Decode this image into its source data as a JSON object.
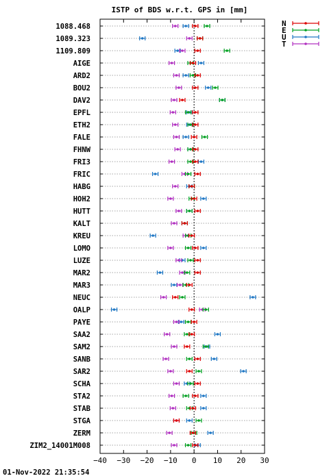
{
  "chart_data": {
    "type": "scatter",
    "title": "ISTP of BDS w.r.t. GPS in [mm]",
    "xlim": [
      -40,
      30
    ],
    "xticks": [
      "−40",
      "−30",
      "−20",
      "−10",
      "0",
      "10",
      "20",
      "30"
    ],
    "xtick_values": [
      -40,
      -30,
      -20,
      -10,
      0,
      10,
      20,
      30
    ],
    "grid": true,
    "legend_position": "top-right",
    "series": [
      {
        "name": "N",
        "color": "#dd0000"
      },
      {
        "name": "E",
        "color": "#00a020"
      },
      {
        "name": "U",
        "color": "#1f77c4"
      },
      {
        "name": "T",
        "color": "#b030c0"
      }
    ],
    "stations": [
      {
        "name": "1088.468",
        "N": 0.5,
        "E": 5.5,
        "U": -3.5,
        "T": -8
      },
      {
        "name": "1089.323",
        "N": 2.5,
        "E": 2.5,
        "U": -22,
        "T": -2
      },
      {
        "name": "1109.809",
        "N": 1.5,
        "E": 14,
        "U": -7,
        "T": -5
      },
      {
        "name": "AIGE",
        "N": -0.5,
        "E": -1.5,
        "U": 3,
        "T": -9.5
      },
      {
        "name": "ARD2",
        "N": 1.5,
        "E": -0.5,
        "U": -3.5,
        "T": -7.5
      },
      {
        "name": "BOU2",
        "N": 0.5,
        "E": 9,
        "U": 6,
        "T": -6.5
      },
      {
        "name": "DAV2",
        "N": -5,
        "E": 12,
        "U": 12,
        "T": -8.5
      },
      {
        "name": "EPFL",
        "N": 0.5,
        "E": -2.5,
        "U": -2,
        "T": -9
      },
      {
        "name": "ETH2",
        "N": 0.5,
        "E": -1.5,
        "U": -2,
        "T": -8
      },
      {
        "name": "FALE",
        "N": 0,
        "E": 4.5,
        "U": -3.5,
        "T": -7.5
      },
      {
        "name": "FHNW",
        "N": 0.5,
        "E": -1.5,
        "U": -1.5,
        "T": -7
      },
      {
        "name": "FRI3",
        "N": 0.5,
        "E": -1.5,
        "U": 3,
        "T": -9.5
      },
      {
        "name": "FRIC",
        "N": 1.5,
        "E": -2.5,
        "U": -16.5,
        "T": -4
      },
      {
        "name": "HABG",
        "N": -1,
        "E": -1,
        "U": -2,
        "T": -8
      },
      {
        "name": "HOH2",
        "N": 0,
        "E": -1,
        "U": 4,
        "T": -10
      },
      {
        "name": "HUTT",
        "N": 1.5,
        "E": -2,
        "U": -2,
        "T": -6.5
      },
      {
        "name": "KALT",
        "N": -4,
        "E": -4,
        "U": -4,
        "T": -8.5
      },
      {
        "name": "KREU",
        "N": -1,
        "E": -2.5,
        "U": -17.5,
        "T": -3.5
      },
      {
        "name": "LOMO",
        "N": 0.5,
        "E": -2.5,
        "U": 4,
        "T": -10
      },
      {
        "name": "LUZE",
        "N": 1.5,
        "E": -1.5,
        "U": -5,
        "T": -6.5
      },
      {
        "name": "MAR2",
        "N": 1.5,
        "E": -3,
        "U": -14.5,
        "T": -5
      },
      {
        "name": "MAR3",
        "N": -2,
        "E": -3.5,
        "U": -8.5,
        "T": -6
      },
      {
        "name": "NEUC",
        "N": -8,
        "E": -5,
        "U": 25,
        "T": -13
      },
      {
        "name": "OALP",
        "N": -1,
        "E": 5,
        "U": -34,
        "T": 3.5
      },
      {
        "name": "PAYE",
        "N": 0,
        "E": -2.5,
        "U": -5.5,
        "T": -7.5
      },
      {
        "name": "SAA2",
        "N": -1,
        "E": -3,
        "U": 10,
        "T": -11.5
      },
      {
        "name": "SAM2",
        "N": -3,
        "E": 5,
        "U": 5.5,
        "T": -8.5
      },
      {
        "name": "SANB",
        "N": 1.5,
        "E": -2,
        "U": 8.5,
        "T": -12
      },
      {
        "name": "SAR2",
        "N": -2,
        "E": 2,
        "U": 21,
        "T": -10
      },
      {
        "name": "SCHA",
        "N": 1.5,
        "E": -1.5,
        "U": -3,
        "T": -7.5
      },
      {
        "name": "STA2",
        "N": 0.5,
        "E": -3.5,
        "U": 4,
        "T": -9.5
      },
      {
        "name": "STAB",
        "N": -0.5,
        "E": -2,
        "U": 4,
        "T": -9
      },
      {
        "name": "STGA",
        "N": -7.5,
        "E": 2,
        "U": -2,
        "T": -7.5
      },
      {
        "name": "ZERM",
        "N": -0.5,
        "E": 0,
        "U": 7,
        "T": -10.5
      },
      {
        "name": "ZIM2_14001M008",
        "N": 0.5,
        "E": -2.5,
        "U": 1.5,
        "T": -8.5
      }
    ]
  },
  "footer": {
    "timestamp": "01-Nov-2022 21:35:54"
  }
}
